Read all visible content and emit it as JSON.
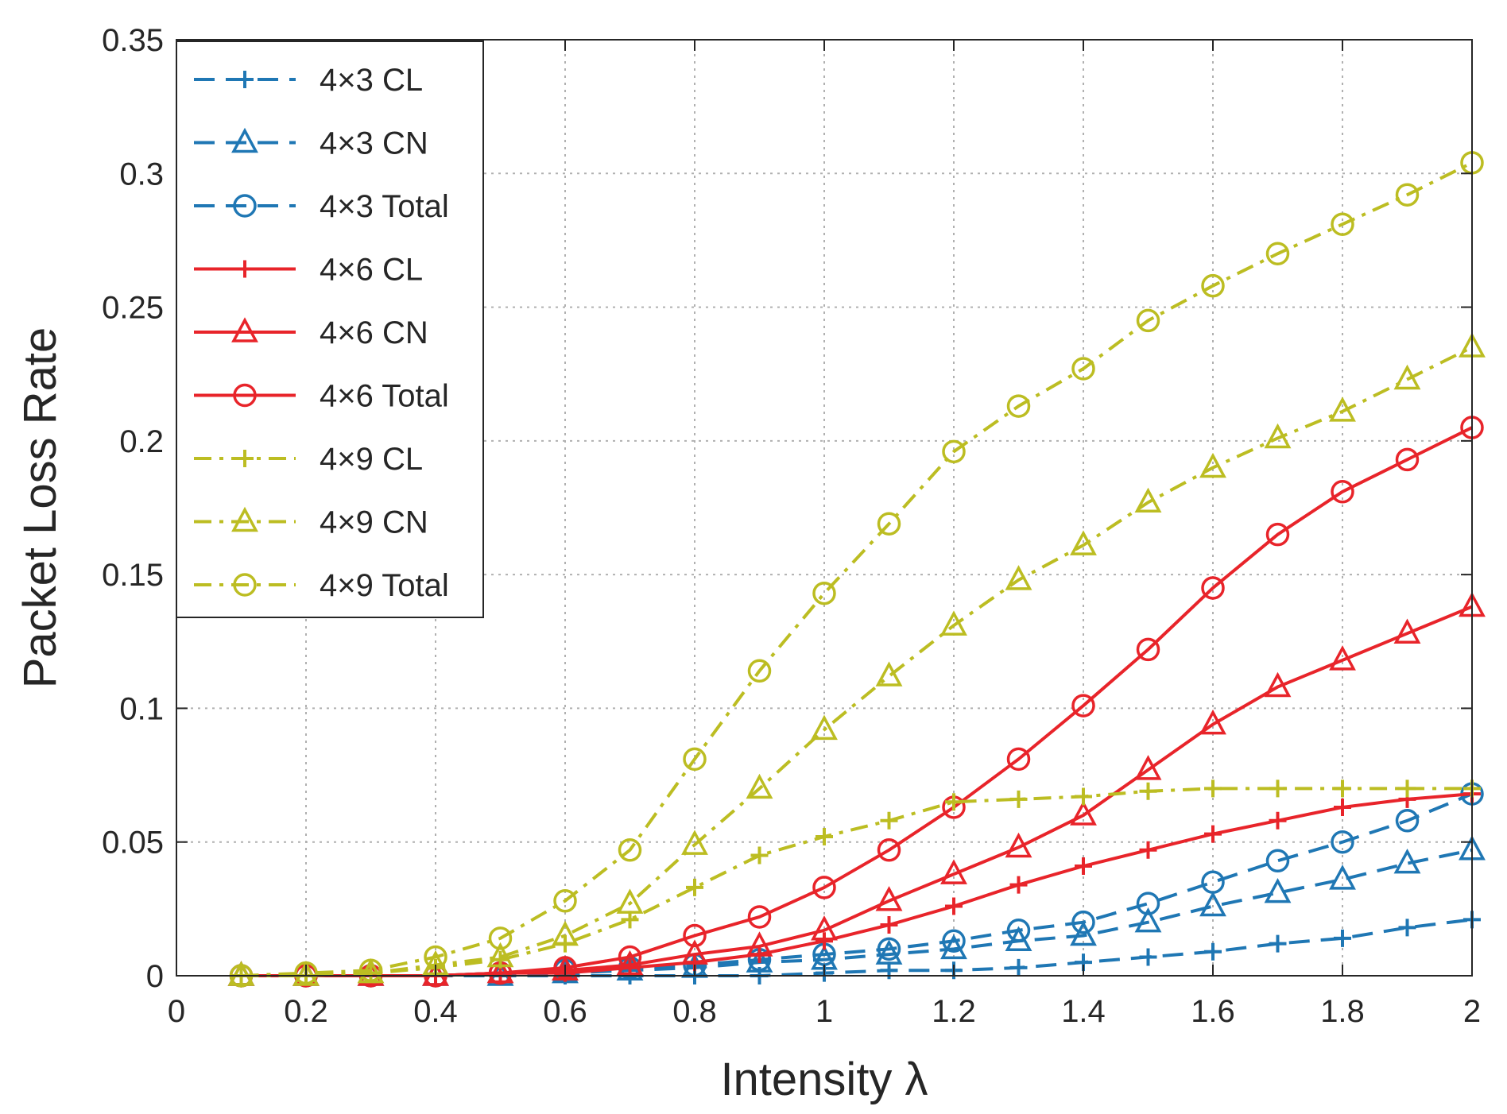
{
  "chart_data": {
    "type": "line",
    "title": "",
    "xlabel": "Intensity λ",
    "ylabel": "Packet Loss Rate",
    "xlim": [
      0,
      2
    ],
    "ylim": [
      0,
      0.35
    ],
    "xticks": [
      0,
      0.2,
      0.4,
      0.6,
      0.8,
      1,
      1.2,
      1.4,
      1.6,
      1.8,
      2
    ],
    "xtick_labels": [
      "0",
      "0.2",
      "0.4",
      "0.6",
      "0.8",
      "1",
      "1.2",
      "1.4",
      "1.6",
      "1.8",
      "2"
    ],
    "yticks": [
      0,
      0.05,
      0.1,
      0.15,
      0.2,
      0.25,
      0.3,
      0.35
    ],
    "ytick_labels": [
      "0",
      "0.05",
      "0.1",
      "0.15",
      "0.2",
      "0.25",
      "0.3",
      "0.35"
    ],
    "grid": true,
    "legend_position": "top-left",
    "x": [
      0.1,
      0.2,
      0.3,
      0.4,
      0.5,
      0.6,
      0.7,
      0.8,
      0.9,
      1.0,
      1.1,
      1.2,
      1.3,
      1.4,
      1.5,
      1.6,
      1.7,
      1.8,
      1.9,
      2.0
    ],
    "series": [
      {
        "name": "4×3 CL",
        "color": "#1f77b4",
        "dash": "dashed",
        "marker": "plus",
        "values": [
          0,
          0,
          0,
          0,
          0,
          0,
          0,
          0,
          0,
          0.001,
          0.002,
          0.002,
          0.003,
          0.005,
          0.007,
          0.009,
          0.012,
          0.014,
          0.018,
          0.021
        ]
      },
      {
        "name": "4×3 CN",
        "color": "#1f77b4",
        "dash": "dashed",
        "marker": "triangle",
        "values": [
          0,
          0,
          0,
          0,
          0,
          0.001,
          0.002,
          0.003,
          0.005,
          0.006,
          0.008,
          0.01,
          0.013,
          0.015,
          0.02,
          0.026,
          0.031,
          0.036,
          0.042,
          0.047
        ]
      },
      {
        "name": "4×3 Total",
        "color": "#1f77b4",
        "dash": "dashed",
        "marker": "circle",
        "values": [
          0,
          0,
          0,
          0,
          0.001,
          0.002,
          0.003,
          0.004,
          0.006,
          0.008,
          0.01,
          0.013,
          0.017,
          0.02,
          0.027,
          0.035,
          0.043,
          0.05,
          0.058,
          0.068
        ]
      },
      {
        "name": "4×6 CL",
        "color": "#e8242a",
        "dash": "solid",
        "marker": "plus",
        "values": [
          0,
          0,
          0,
          0,
          0.001,
          0.001,
          0.003,
          0.005,
          0.008,
          0.013,
          0.019,
          0.026,
          0.034,
          0.041,
          0.047,
          0.053,
          0.058,
          0.063,
          0.066,
          0.068
        ]
      },
      {
        "name": "4×6 CN",
        "color": "#e8242a",
        "dash": "solid",
        "marker": "triangle",
        "values": [
          0,
          0,
          0,
          0,
          0.001,
          0.002,
          0.004,
          0.008,
          0.011,
          0.017,
          0.028,
          0.038,
          0.048,
          0.06,
          0.077,
          0.094,
          0.108,
          0.118,
          0.128,
          0.138
        ]
      },
      {
        "name": "4×6 Total",
        "color": "#e8242a",
        "dash": "solid",
        "marker": "circle",
        "values": [
          0,
          0,
          0,
          0,
          0.001,
          0.003,
          0.007,
          0.015,
          0.022,
          0.033,
          0.047,
          0.063,
          0.081,
          0.101,
          0.122,
          0.145,
          0.165,
          0.181,
          0.193,
          0.205
        ]
      },
      {
        "name": "4×9 CL",
        "color": "#bcbd22",
        "dash": "dashdot",
        "marker": "plus",
        "values": [
          0,
          0,
          0.001,
          0.003,
          0.006,
          0.012,
          0.021,
          0.033,
          0.045,
          0.052,
          0.058,
          0.065,
          0.066,
          0.067,
          0.069,
          0.07,
          0.07,
          0.07,
          0.07,
          0.07
        ]
      },
      {
        "name": "4×9 CN",
        "color": "#bcbd22",
        "dash": "dashdot",
        "marker": "triangle",
        "values": [
          0,
          0,
          0.001,
          0.004,
          0.007,
          0.015,
          0.027,
          0.049,
          0.07,
          0.092,
          0.112,
          0.131,
          0.148,
          0.161,
          0.177,
          0.19,
          0.201,
          0.211,
          0.223,
          0.235
        ]
      },
      {
        "name": "4×9 Total",
        "color": "#bcbd22",
        "dash": "dashdot",
        "marker": "circle",
        "values": [
          0,
          0.001,
          0.002,
          0.007,
          0.014,
          0.028,
          0.047,
          0.081,
          0.114,
          0.143,
          0.169,
          0.196,
          0.213,
          0.227,
          0.245,
          0.258,
          0.27,
          0.281,
          0.292,
          0.304
        ]
      }
    ]
  }
}
